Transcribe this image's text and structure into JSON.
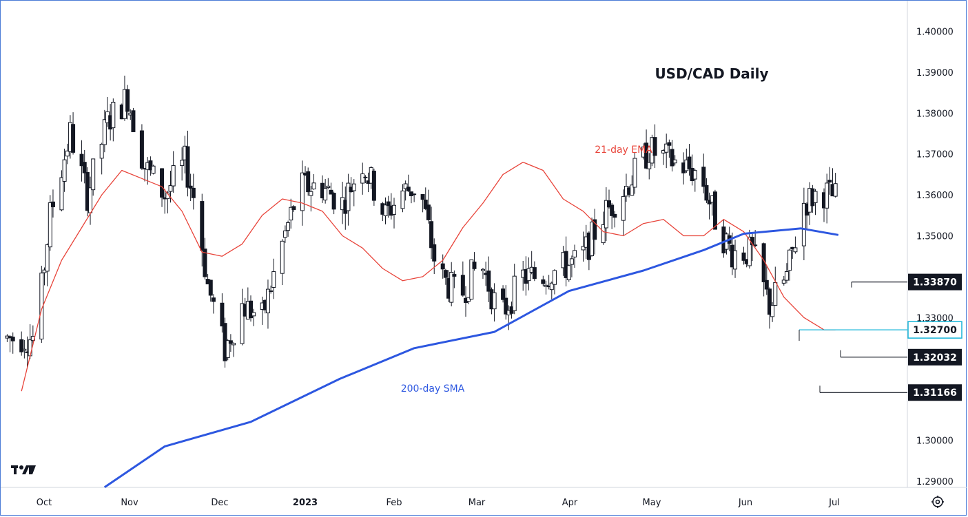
{
  "chart_data": {
    "type": "candlestick",
    "title": "USD/CAD Daily",
    "instrument": "USD/CAD",
    "timeframe": "Daily",
    "x_ticks": [
      "Oct",
      "Nov",
      "Dec",
      "2023",
      "Feb",
      "Mar",
      "Apr",
      "May",
      "Jun",
      "Jul"
    ],
    "y_ticks": [
      "1.40000",
      "1.39000",
      "1.38000",
      "1.37000",
      "1.36000",
      "1.35000",
      "1.33000",
      "1.30000",
      "1.29000"
    ],
    "ylim": [
      1.2885,
      1.4045
    ],
    "series": [
      {
        "name": "21-day EMA",
        "color": "#e8443a",
        "points": [
          [
            "Sep 26",
            1.312
          ],
          [
            "Oct 3",
            1.332
          ],
          [
            "Oct 10",
            1.344
          ],
          [
            "Oct 17",
            1.352
          ],
          [
            "Oct 24",
            1.36
          ],
          [
            "Oct 31",
            1.366
          ],
          [
            "Nov 7",
            1.364
          ],
          [
            "Nov 14",
            1.362
          ],
          [
            "Nov 21",
            1.356
          ],
          [
            "Nov 28",
            1.346
          ],
          [
            "Dec 5",
            1.345
          ],
          [
            "Dec 12",
            1.348
          ],
          [
            "Dec 19",
            1.355
          ],
          [
            "Dec 26",
            1.359
          ],
          [
            "Jan 2",
            1.358
          ],
          [
            "Jan 9",
            1.356
          ],
          [
            "Jan 16",
            1.35
          ],
          [
            "Jan 23",
            1.347
          ],
          [
            "Jan 30",
            1.342
          ],
          [
            "Feb 6",
            1.339
          ],
          [
            "Feb 13",
            1.34
          ],
          [
            "Feb 20",
            1.344
          ],
          [
            "Feb 27",
            1.352
          ],
          [
            "Mar 6",
            1.358
          ],
          [
            "Mar 13",
            1.365
          ],
          [
            "Mar 20",
            1.368
          ],
          [
            "Mar 27",
            1.366
          ],
          [
            "Apr 3",
            1.359
          ],
          [
            "Apr 10",
            1.356
          ],
          [
            "Apr 17",
            1.351
          ],
          [
            "Apr 24",
            1.35
          ],
          [
            "May 1",
            1.353
          ],
          [
            "May 8",
            1.354
          ],
          [
            "May 15",
            1.35
          ],
          [
            "May 22",
            1.35
          ],
          [
            "May 29",
            1.354
          ],
          [
            "Jun 5",
            1.351
          ],
          [
            "Jun 12",
            1.344
          ],
          [
            "Jun 19",
            1.335
          ],
          [
            "Jun 26",
            1.33
          ],
          [
            "Jul 3",
            1.327
          ],
          [
            "Jul 7",
            1.327
          ]
        ]
      },
      {
        "name": "200-day SMA",
        "color": "#2d57e0",
        "points": [
          [
            "Oct 25",
            1.2885
          ],
          [
            "Nov 15",
            1.2985
          ],
          [
            "Dec 15",
            1.3045
          ],
          [
            "Jan 15",
            1.315
          ],
          [
            "Feb 10",
            1.3225
          ],
          [
            "Mar 10",
            1.3265
          ],
          [
            "Apr 5",
            1.3365
          ],
          [
            "May 1",
            1.3415
          ],
          [
            "May 22",
            1.3465
          ],
          [
            "Jun 5",
            1.3505
          ],
          [
            "Jun 25",
            1.3518
          ],
          [
            "Jul 8",
            1.3502
          ]
        ]
      }
    ],
    "price_levels": [
      {
        "label": "1.33870",
        "value": 1.3387,
        "style": "dark"
      },
      {
        "label": "1.32700",
        "value": 1.327,
        "style": "cyan"
      },
      {
        "label": "1.32032",
        "value": 1.32032,
        "style": "dark"
      },
      {
        "label": "1.31166",
        "value": 1.31166,
        "style": "dark"
      }
    ],
    "annotations": [
      {
        "text": "21-day EMA",
        "color": "#e8443a"
      },
      {
        "text": "200-day SMA",
        "color": "#2d57e0"
      }
    ],
    "grid": false
  },
  "colors": {
    "up_body": "#ffffff",
    "down_body": "#131722",
    "wick": "#131722",
    "cyan_level": "#14b4d8"
  },
  "logo_icon": "tradingview-logo-icon",
  "settings_icon": "settings-gear-icon"
}
